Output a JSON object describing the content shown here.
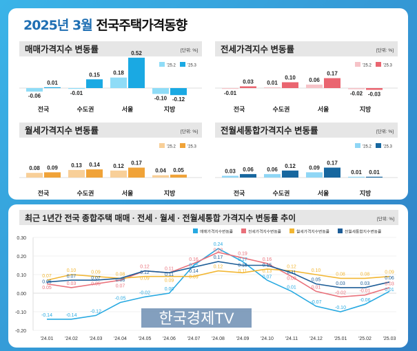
{
  "header": {
    "title_highlight": "2025년 3월",
    "title_rest": "전국주택가격동향"
  },
  "unit_label": "[단위: %]",
  "watermark": "한국경제TV",
  "chart_data": [
    {
      "type": "bar",
      "title": "매매가격지수 변동률",
      "categories": [
        "전국",
        "수도권",
        "서울",
        "지방"
      ],
      "series": [
        {
          "name": "'25.2",
          "color": "#8fdcf7",
          "values": [
            -0.06,
            -0.01,
            0.18,
            -0.1
          ]
        },
        {
          "name": "'25.3",
          "color": "#1aa9e3",
          "values": [
            0.01,
            0.15,
            0.52,
            -0.12
          ]
        }
      ]
    },
    {
      "type": "bar",
      "title": "전세가격지수 변동률",
      "categories": [
        "전국",
        "수도권",
        "서울",
        "지방"
      ],
      "series": [
        {
          "name": "'25.2",
          "color": "#f6c3c8",
          "values": [
            -0.01,
            0.01,
            0.06,
            -0.02
          ]
        },
        {
          "name": "'25.3",
          "color": "#ea6570",
          "values": [
            0.03,
            0.1,
            0.17,
            -0.03
          ]
        }
      ]
    },
    {
      "type": "bar",
      "title": "월세가격지수 변동률",
      "categories": [
        "전국",
        "수도권",
        "서울",
        "지방"
      ],
      "series": [
        {
          "name": "'25.2",
          "color": "#f8cf98",
          "values": [
            0.08,
            0.13,
            0.12,
            0.04
          ]
        },
        {
          "name": "'25.3",
          "color": "#f0a338",
          "values": [
            0.09,
            0.14,
            0.17,
            0.05
          ]
        }
      ]
    },
    {
      "type": "bar",
      "title": "전월세통합가격지수 변동률",
      "categories": [
        "전국",
        "수도권",
        "서울",
        "지방"
      ],
      "series": [
        {
          "name": "'25.2",
          "color": "#8fd6f5",
          "values": [
            0.03,
            0.06,
            0.09,
            0.01
          ]
        },
        {
          "name": "'25.3",
          "color": "#17679f",
          "values": [
            0.06,
            0.12,
            0.17,
            0.01
          ]
        }
      ]
    },
    {
      "type": "line",
      "title": "최근 1년간 전국 종합주택 매매 · 전세 · 월세 · 전월세통합 가격지수 변동률 추이",
      "x": [
        "'24.01",
        "'24.02",
        "'24.03",
        "'24.04",
        "'24.05",
        "'24.06",
        "'24.07",
        "'24.08",
        "'24.09",
        "'24.10",
        "'24.11",
        "'24.12",
        "'25.01",
        "'25.02",
        "'25.03"
      ],
      "ylim": [
        -0.2,
        0.3
      ],
      "yticks": [
        "-0.20",
        "-0.10",
        "0.00",
        "0.10",
        "0.20",
        "0.30"
      ],
      "grid": "horizontal",
      "legend": "top-right",
      "series": [
        {
          "name": "매매가격지수변동률",
          "color": "#27a9e1",
          "values": [
            -0.14,
            -0.14,
            -0.12,
            -0.05,
            -0.02,
            0.0,
            0.15,
            0.24,
            0.17,
            0.07,
            0.01,
            -0.07,
            -0.1,
            -0.06,
            0.01
          ]
        },
        {
          "name": "전세가격지수변동률",
          "color": "#e9707a",
          "values": [
            0.05,
            0.03,
            0.05,
            0.07,
            0.12,
            0.11,
            0.16,
            0.22,
            0.19,
            0.16,
            0.09,
            0.01,
            -0.02,
            -0.01,
            0.03
          ]
        },
        {
          "name": "월세가격지수변동률",
          "color": "#f2b632",
          "values": [
            0.07,
            0.1,
            0.09,
            0.08,
            0.09,
            0.09,
            0.09,
            0.12,
            0.11,
            0.13,
            0.12,
            0.1,
            0.08,
            0.08,
            0.09
          ]
        },
        {
          "name": "전월세통합지수변동률",
          "color": "#1d5d97",
          "values": [
            0.06,
            0.07,
            0.07,
            0.08,
            0.12,
            0.11,
            0.14,
            0.17,
            0.15,
            0.15,
            0.11,
            0.05,
            0.03,
            0.03,
            0.06
          ]
        }
      ]
    }
  ]
}
